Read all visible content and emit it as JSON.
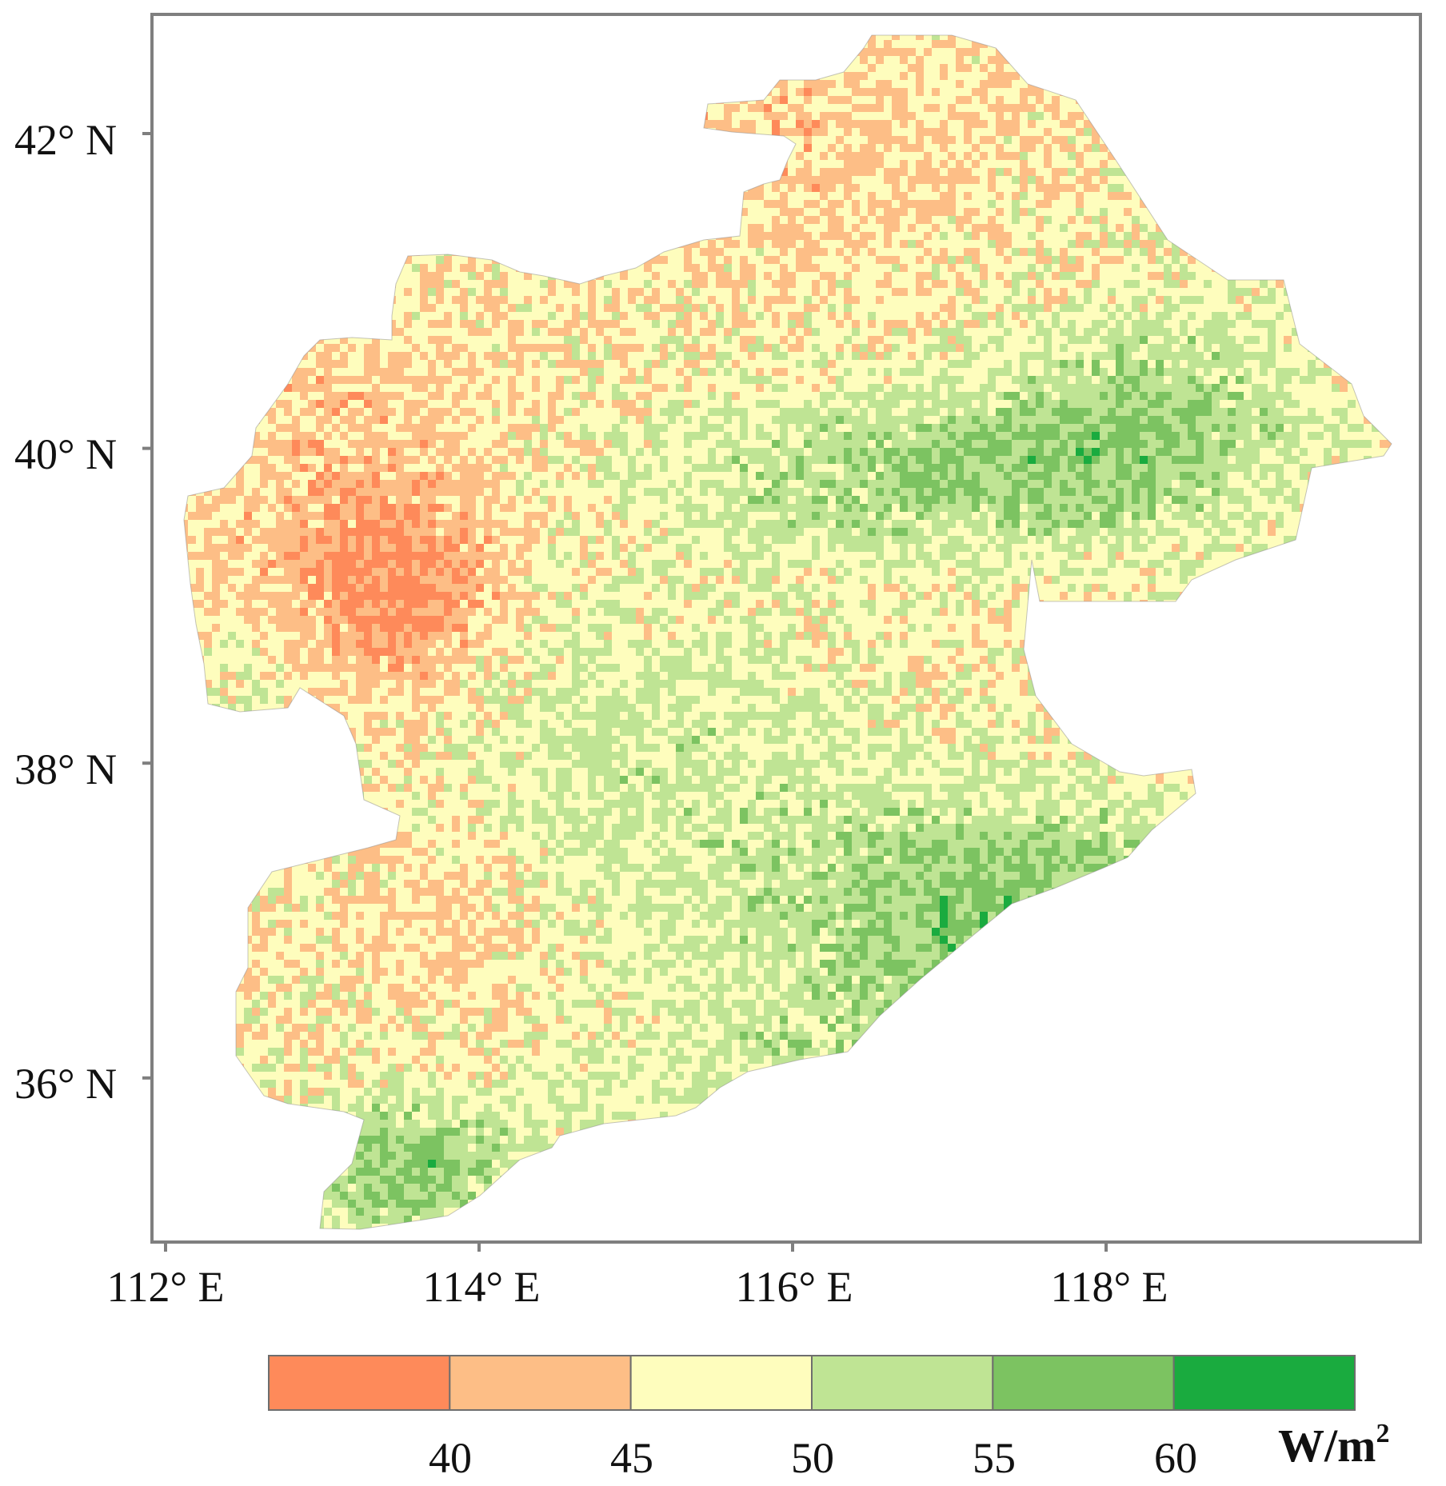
{
  "figure": {
    "lat_labels": [
      "42° N",
      "40° N",
      "38° N",
      "36° N"
    ],
    "lon_labels": [
      "112° E",
      "114° E",
      "116° E",
      "118° E"
    ],
    "lat_values": [
      42,
      40,
      38,
      36
    ],
    "lon_values": [
      112,
      114,
      116,
      118
    ]
  },
  "legend": {
    "breaks": [
      "40",
      "45",
      "50",
      "55",
      "60"
    ],
    "unit_base": "W/m",
    "unit_exp": "2",
    "classes": [
      {
        "label": "<40",
        "color": "#fe8a5a"
      },
      {
        "label": "40-45",
        "color": "#fdbe86"
      },
      {
        "label": "45-50",
        "color": "#fefdbd"
      },
      {
        "label": "50-55",
        "color": "#bfe494"
      },
      {
        "label": "55-60",
        "color": "#7cc361"
      },
      {
        "label": ">60",
        "color": "#1aab3f"
      }
    ]
  },
  "colors": {
    "frame": "#7f7f7f",
    "legend_border": "#6e6e6e"
  }
}
